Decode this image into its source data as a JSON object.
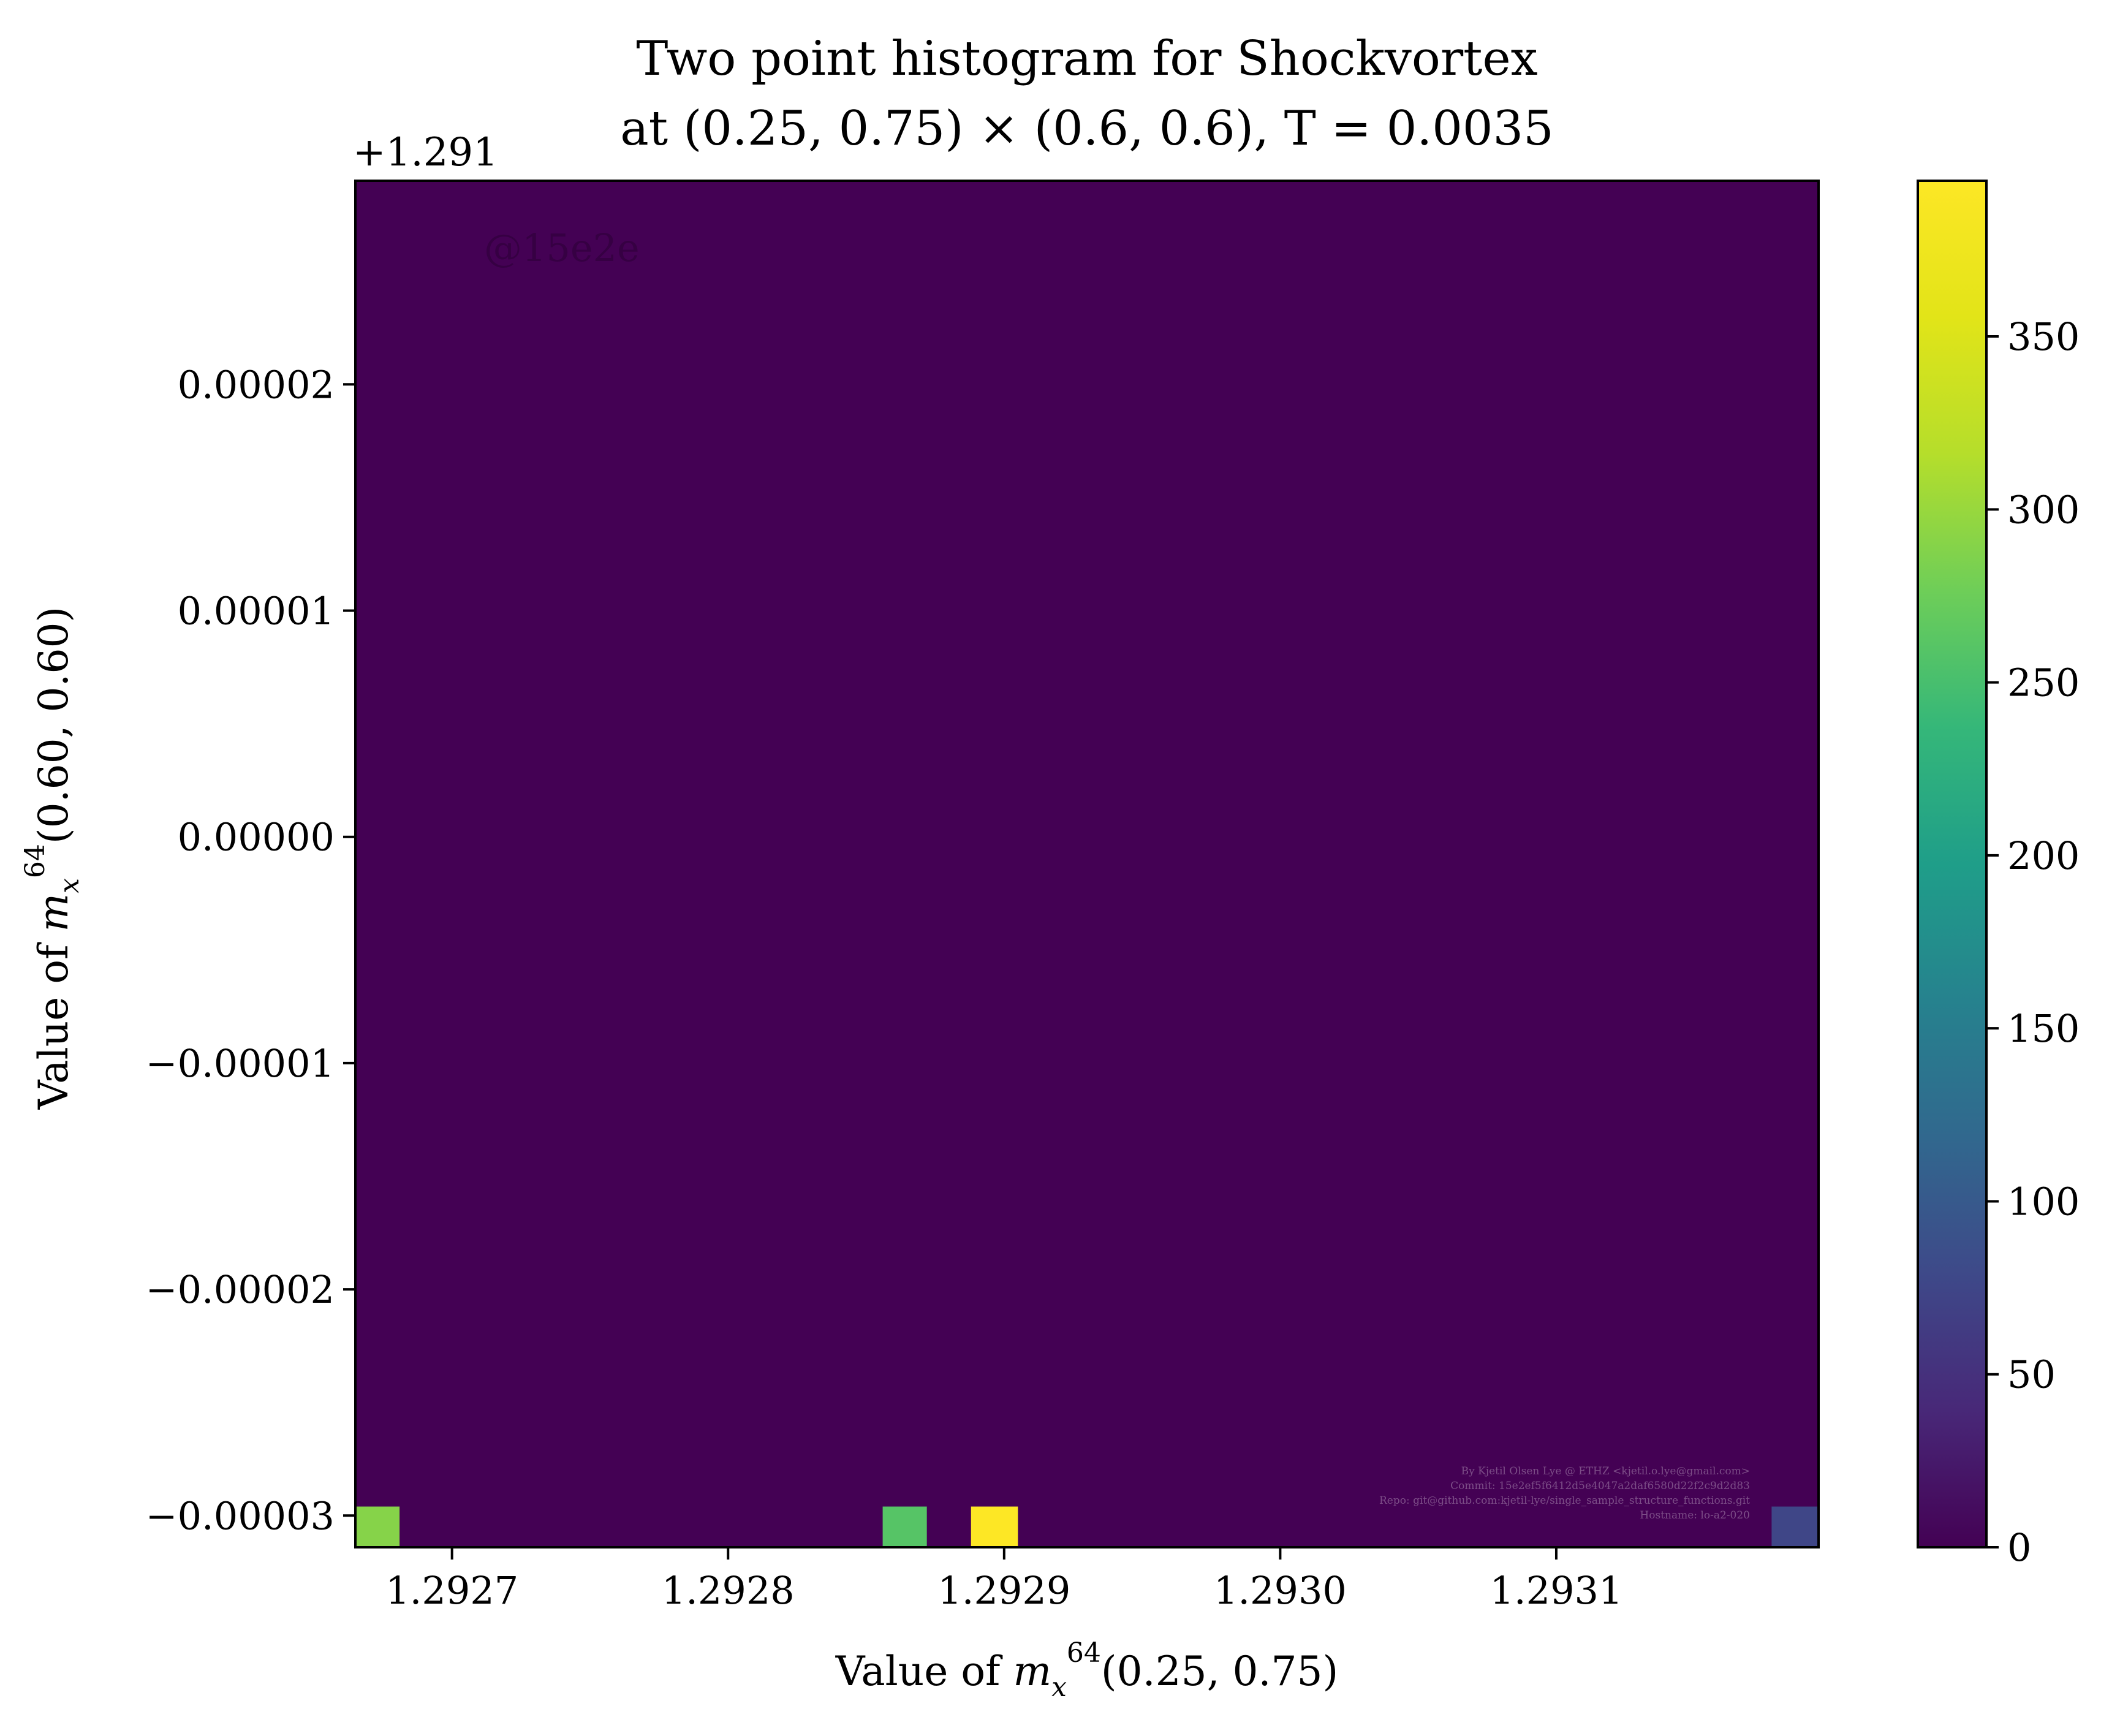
{
  "chart_data": {
    "type": "heatmap",
    "title_lines": [
      "Two point histogram for Shockvortex",
      "at (0.25, 0.75) × (0.6, 0.6), T = 0.0035"
    ],
    "xlabel": "Value of m_x^64(0.25, 0.75)",
    "ylabel": "Value of m_x^64(0.60, 0.60)",
    "y_offset_label": "+1.291",
    "watermark": "@15e2e",
    "credits": [
      "By Kjetil Olsen Lye @ ETHZ <kjetil.o.lye@gmail.com>",
      "Commit: 15e2ef5f6412d5e4047a2daf6580d22f2c9d2d83",
      "Repo: git@github.com:kjetil-lye/single_sample_structure_functions.git",
      "Hostname: lo-a2-020"
    ],
    "xlim": [
      1.292665,
      1.293195
    ],
    "ylim": [
      -3.14e-05,
      2.9e-05
    ],
    "y_offset": 1.291,
    "x_ticks": [
      1.2927,
      1.2928,
      1.2929,
      1.293,
      1.2931
    ],
    "x_tick_labels": [
      "1.2927",
      "1.2928",
      "1.2929",
      "1.2930",
      "1.2931"
    ],
    "y_ticks": [
      2e-05,
      1e-05,
      0.0,
      -1e-05,
      -2e-05,
      -3e-05
    ],
    "y_tick_labels": [
      "0.00002",
      "0.00001",
      "0.00000",
      "−0.00001",
      "−0.00002",
      "−0.00003"
    ],
    "colorbar": {
      "min": 0,
      "max": 395,
      "ticks": [
        0,
        50,
        100,
        150,
        200,
        250,
        300,
        350
      ],
      "tick_labels": [
        "0",
        "50",
        "100",
        "150",
        "200",
        "250",
        "300",
        "350"
      ],
      "colormap": "viridis"
    },
    "background_count": 0,
    "bins": [
      {
        "x": [
          1.292665,
          1.292681
        ],
        "y": [
          -3.14e-05,
          -2.96e-05
        ],
        "count": 290
      },
      {
        "x": [
          1.292856,
          1.292872
        ],
        "y": [
          -3.14e-05,
          -2.96e-05
        ],
        "count": 260
      },
      {
        "x": [
          1.292888,
          1.292905
        ],
        "y": [
          -3.14e-05,
          -2.96e-05
        ],
        "count": 395
      },
      {
        "x": [
          1.293178,
          1.293195
        ],
        "y": [
          -3.14e-05,
          -2.96e-05
        ],
        "count": 75
      }
    ]
  }
}
